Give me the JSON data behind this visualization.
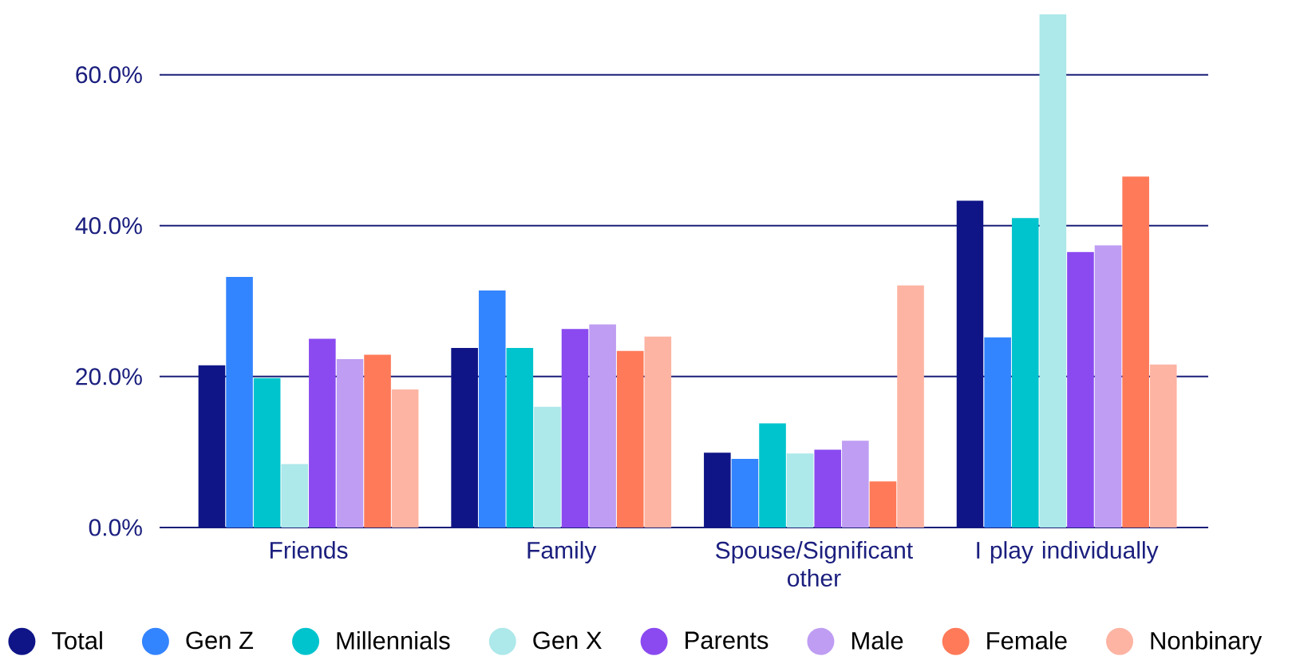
{
  "chart_data": {
    "type": "bar",
    "categories": [
      "Friends",
      "Family",
      "Spouse/Significant other",
      "I play individually"
    ],
    "series": [
      {
        "name": "Total",
        "color": "#0f1587",
        "values": [
          21.5,
          23.8,
          9.9,
          43.3
        ]
      },
      {
        "name": "Gen Z",
        "color": "#3384ff",
        "values": [
          33.2,
          31.4,
          9.1,
          25.2
        ]
      },
      {
        "name": "Millennials",
        "color": "#00c4cd",
        "values": [
          19.8,
          23.8,
          13.8,
          41.0
        ]
      },
      {
        "name": "Gen X",
        "color": "#ade8ea",
        "values": [
          8.4,
          16.0,
          9.8,
          68.0
        ]
      },
      {
        "name": "Parents",
        "color": "#8a4af0",
        "values": [
          25.0,
          26.3,
          10.3,
          36.5
        ]
      },
      {
        "name": "Male",
        "color": "#bf9df3",
        "values": [
          22.3,
          26.9,
          11.5,
          37.4
        ]
      },
      {
        "name": "Female",
        "color": "#ff7a59",
        "values": [
          22.9,
          23.4,
          6.1,
          46.5
        ]
      },
      {
        "name": "Nonbinary",
        "color": "#fdb4a3",
        "values": [
          18.3,
          25.3,
          32.1,
          21.6
        ]
      }
    ],
    "ylim": [
      0,
      68
    ],
    "yticks": [
      {
        "value": 0,
        "label": "0.0%"
      },
      {
        "value": 20,
        "label": "20.0%"
      },
      {
        "value": 40,
        "label": "40.0%"
      },
      {
        "value": 60,
        "label": "60.0%"
      }
    ],
    "grid": "y",
    "legend": "bottom"
  }
}
